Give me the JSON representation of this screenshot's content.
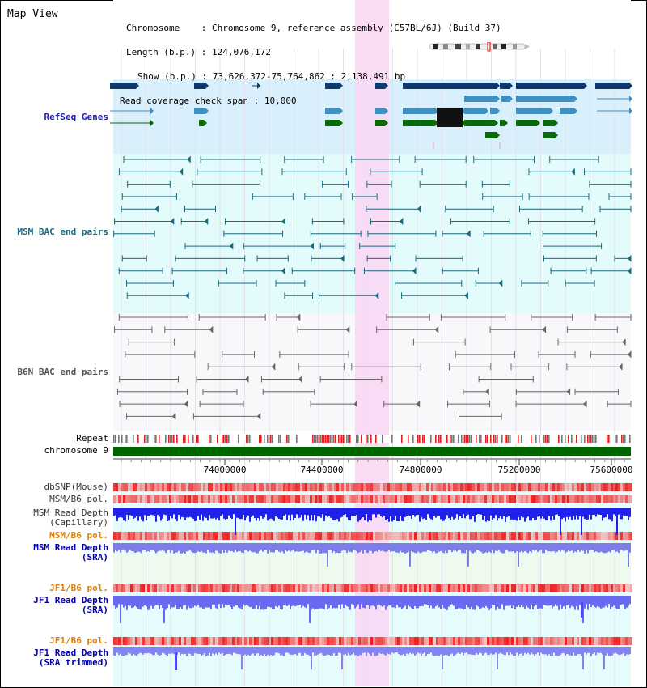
{
  "window": {
    "title": "Map View"
  },
  "header": {
    "chromosome_key": "Chromosome",
    "chromosome_val": "Chromosome 9, reference assembly (C57BL/6J) (Build 37)",
    "length_key": "Length (b.p.)",
    "length_val": "124,076,172",
    "show_key": "Show (b.p.)",
    "show_val": "73,626,372-75,764,862 : 2,138,491 bp",
    "coverage_key": "Read coverage check span",
    "coverage_val": "10,000"
  },
  "tracks": {
    "refseq": "RefSeq Genes",
    "msm_bac": "MSM BAC end pairs",
    "b6n_bac": "B6N BAC end pairs",
    "repeat": "Repeat",
    "chromosome": "chromosome 9",
    "dbsnp": "dbSNP(Mouse)",
    "msm_b6_pol": "MSM/B6 pol.",
    "msm_depth_1": "MSM Read Depth",
    "msm_depth_2": "(Capillary)",
    "msm_b6_pol_sra": "MSM/B6 pol.",
    "msm_sra_1": "MSM Read Depth",
    "msm_sra_2": "(SRA)",
    "jf1_pol": "JF1/B6 pol.",
    "jf1_depth_1": "JF1 Read Depth",
    "jf1_depth_2": "(SRA)",
    "jf1_pol_2": "JF1/B6 pol.",
    "jf1_trim_1": "JF1 Read Depth",
    "jf1_trim_2": "(SRA trimmed)"
  },
  "axis": {
    "ticks": [
      "74000000",
      "74400000",
      "74800000",
      "75200000",
      "75600000"
    ]
  },
  "colors": {
    "highlight": "#f9d6f3",
    "refseq_bg": "#d9effb",
    "msm_bac_bg": "#e3fbfb",
    "chrom_bar": "#006400",
    "depth_blue": "#2020e8",
    "pol_red": "#e02020"
  }
}
